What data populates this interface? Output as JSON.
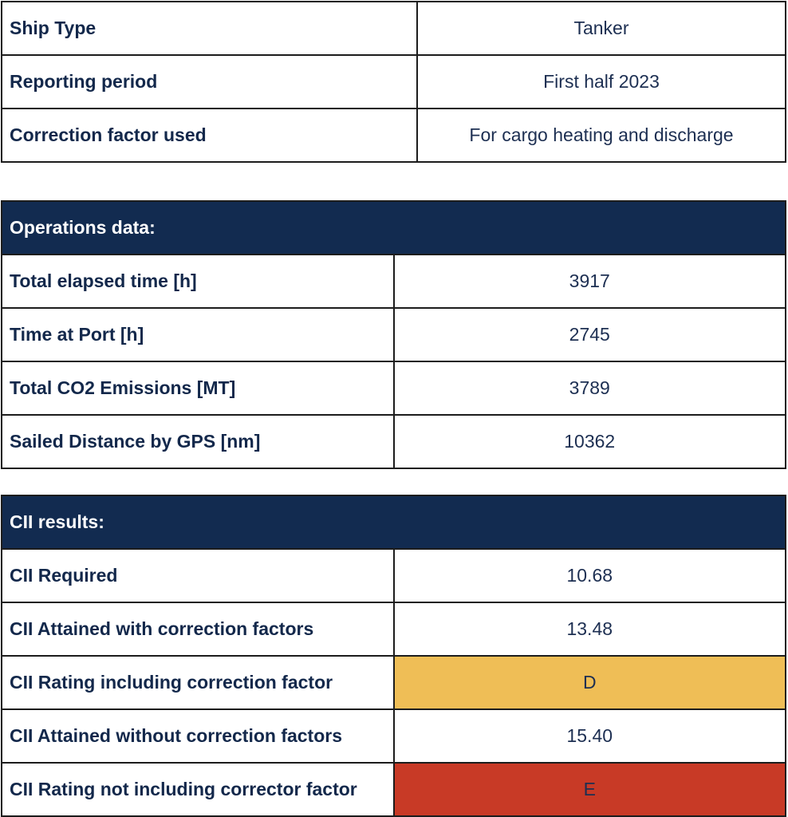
{
  "general": [
    {
      "label": "Ship Type",
      "value": "Tanker"
    },
    {
      "label": "Reporting period",
      "value": "First half 2023"
    },
    {
      "label": "Correction factor used",
      "value": "For cargo heating and discharge"
    }
  ],
  "operations": {
    "header": "Operations data:",
    "rows": [
      {
        "label": "Total elapsed time [h]",
        "value": "3917"
      },
      {
        "label": "Time at Port [h]",
        "value": "2745"
      },
      {
        "label": "Total CO2 Emissions [MT]",
        "value": "3789"
      },
      {
        "label": "Sailed Distance by GPS [nm]",
        "value": "10362"
      }
    ]
  },
  "cii": {
    "header": "CII results:",
    "rows": [
      {
        "label": "CII Required",
        "value": "10.68"
      },
      {
        "label": "CII Attained with correction factors",
        "value": "13.48"
      },
      {
        "label": "CII Rating including correction factor",
        "value": "D",
        "color": "#efbe56"
      },
      {
        "label": "CII Attained without correction factors",
        "value": "15.40"
      },
      {
        "label": "CII Rating not including corrector factor",
        "value": "E",
        "color": "#c83a26"
      }
    ]
  },
  "colors": {
    "header_bg": "#122b50",
    "text": "#13284b"
  }
}
